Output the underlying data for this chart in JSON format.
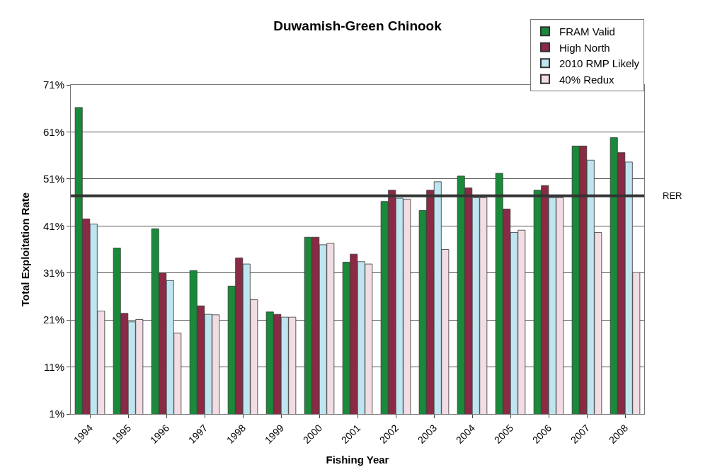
{
  "chart_data": {
    "type": "bar",
    "title": "Duwamish-Green Chinook",
    "xlabel": "Fishing Year",
    "ylabel": "Total Exploitation Rate",
    "categories": [
      "1994",
      "1995",
      "1996",
      "1997",
      "1998",
      "1999",
      "2000",
      "2001",
      "2002",
      "2003",
      "2004",
      "2005",
      "2006",
      "2007",
      "2008"
    ],
    "series": [
      {
        "name": "FRAM Valid",
        "color": "#1a8a3a",
        "values": [
          66.2,
          36.3,
          40.4,
          31.5,
          28.2,
          22.7,
          38.6,
          33.3,
          46.2,
          44.3,
          51.6,
          52.2,
          48.6,
          58.0,
          59.8
        ]
      },
      {
        "name": "High North",
        "color": "#8b2a45",
        "values": [
          42.5,
          22.4,
          31.0,
          24.0,
          34.2,
          22.2,
          38.6,
          35.0,
          48.6,
          48.6,
          49.1,
          44.6,
          49.6,
          58.0,
          56.6
        ]
      },
      {
        "name": "2010 RMP Likely",
        "color": "#bfe6f0",
        "values": [
          41.4,
          20.6,
          29.4,
          22.2,
          32.9,
          21.6,
          37.0,
          33.4,
          46.9,
          50.4,
          47.0,
          39.6,
          47.0,
          55.0,
          54.6
        ]
      },
      {
        "name": "40% Redux",
        "color": "#f2dde4",
        "values": [
          22.9,
          21.1,
          18.2,
          22.1,
          25.3,
          21.6,
          37.3,
          32.9,
          46.7,
          36.0,
          47.0,
          40.1,
          47.0,
          39.6,
          31.1
        ]
      }
    ],
    "ylim": [
      1,
      71
    ],
    "yticks": [
      {
        "value": 1,
        "label": "1%"
      },
      {
        "value": 11,
        "label": "11%"
      },
      {
        "value": 21,
        "label": "21%"
      },
      {
        "value": 31,
        "label": "31%"
      },
      {
        "value": 41,
        "label": "41%"
      },
      {
        "value": 51,
        "label": "51%"
      },
      {
        "value": 61,
        "label": "61%"
      },
      {
        "value": 71,
        "label": "71%"
      }
    ],
    "ref_lines": [
      {
        "axis": "y",
        "value": 47.4,
        "label": "RER",
        "color": "#333333"
      }
    ],
    "grid": "y",
    "legend": "top right"
  }
}
